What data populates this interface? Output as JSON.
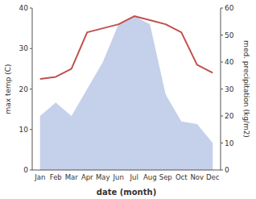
{
  "chart_data": {
    "type": "line",
    "xlabel": "date (month)",
    "ylabel": "max temp (C)",
    "y2label": "med. precipitation (kg/m2)",
    "categories": [
      "Jan",
      "Feb",
      "Mar",
      "Apr",
      "May",
      "Jun",
      "Jul",
      "Aug",
      "Sep",
      "Oct",
      "Nov",
      "Dec"
    ],
    "series": [
      {
        "type": "area",
        "axis": "y2",
        "color": "#c5d0ea",
        "values": [
          20,
          25,
          20,
          30,
          40,
          54,
          57,
          54,
          28,
          18,
          17,
          10
        ]
      },
      {
        "type": "line",
        "color": "#c0504d",
        "values": [
          22.5,
          23.0,
          25.0,
          34.0,
          35.0,
          36.0,
          38.0,
          37.0,
          36.0,
          34.0,
          26.0,
          24.0
        ]
      }
    ],
    "ylim": [
      0,
      40
    ],
    "yticks": [
      0,
      10,
      20,
      30,
      40
    ],
    "y2lim": [
      0,
      60
    ],
    "y2ticks": [
      0,
      10,
      20,
      30,
      40,
      50,
      60
    ],
    "grid": false
  }
}
